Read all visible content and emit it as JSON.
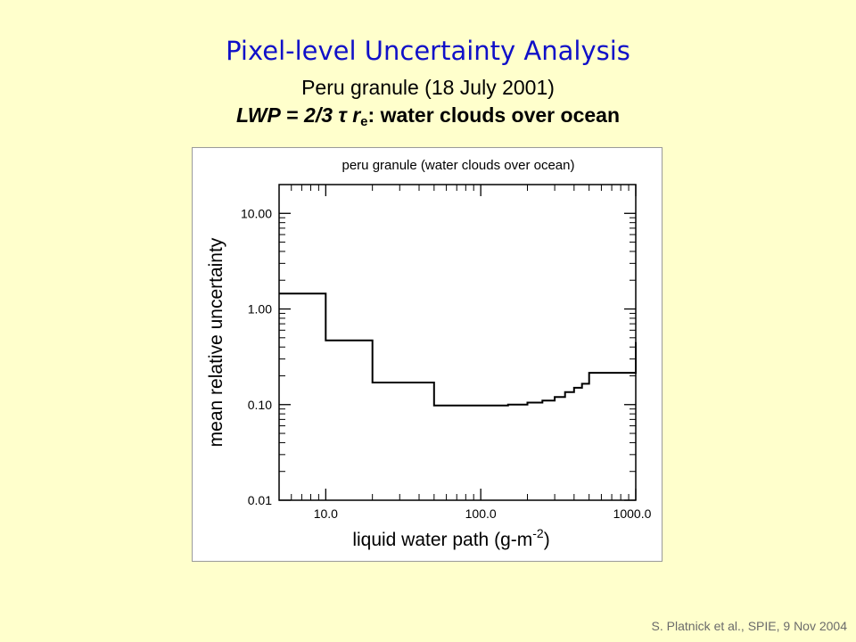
{
  "slide": {
    "title": "Pixel-level Uncertainty Analysis",
    "subtitle": "Peru granule (18 July 2001)",
    "formula": {
      "lhs": "LWP",
      "equals": " = ",
      "fraction": "2/3",
      "tau": "τ",
      "r": "r",
      "r_sub": "e",
      "rest": ": water clouds over ocean"
    },
    "citation": "S. Platnick et al., SPIE, 9 Nov  2004"
  },
  "colors": {
    "background": "#ffffcc",
    "title": "#1010c8",
    "line": "#000000"
  },
  "chart_data": {
    "type": "line",
    "title": "peru granule (water clouds over ocean)",
    "xlabel": "liquid water path (g-m",
    "xlabel_sup": "-2",
    "xlabel_end": ")",
    "ylabel": "mean relative uncertainty",
    "x_scale": "log",
    "y_scale": "log",
    "xlim": [
      5,
      1000
    ],
    "ylim": [
      0.01,
      20
    ],
    "x_ticks": [
      10,
      100,
      1000
    ],
    "x_tick_labels": [
      "10.0",
      "100.0",
      "1000.0"
    ],
    "y_ticks": [
      0.01,
      0.1,
      1,
      10
    ],
    "y_tick_labels": [
      "0.01",
      "0.10",
      "1.00",
      "10.00"
    ],
    "grid": false,
    "series": [
      {
        "step": "post",
        "x": [
          5,
          10,
          20,
          50,
          150,
          200,
          250,
          300,
          350,
          400,
          450,
          500,
          1000
        ],
        "y": [
          1.45,
          0.47,
          0.17,
          0.098,
          0.1,
          0.105,
          0.11,
          0.12,
          0.135,
          0.15,
          0.165,
          0.215,
          0.45
        ]
      }
    ]
  }
}
